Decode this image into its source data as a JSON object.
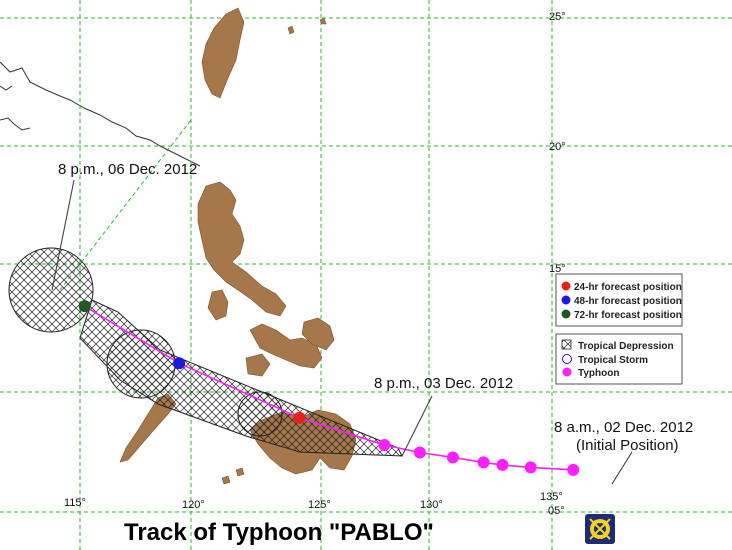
{
  "title": "Track of Typhoon \"PABLO\"",
  "annotations": {
    "initial_time": "8 a.m., 02 Dec. 2012",
    "initial_note": "(Initial Position)",
    "day2_time": "8 p.m., 03 Dec. 2012",
    "day5_time": "8 p.m., 06 Dec. 2012"
  },
  "grid_labels": {
    "lon_115": "115°",
    "lon_120": "120°",
    "lon_125": "125°",
    "lon_130": "130°",
    "lon_135": "135°",
    "lat_05": "05°",
    "lat_15": "15°",
    "lat_20": "20°",
    "lat_25": "25°"
  },
  "legend": {
    "forecast": [
      {
        "label": "24-hr forecast position",
        "color": "#e8201c"
      },
      {
        "label": "48-hr forecast position",
        "color": "#1a1ae0"
      },
      {
        "label": "72-hr forecast position",
        "color": "#1f5a22"
      }
    ],
    "category": [
      {
        "label": "Tropical Depression",
        "symbol": "hatched-square-icon"
      },
      {
        "label": "Tropical Storm",
        "symbol": "hollow-blue-circle-icon"
      },
      {
        "label": "Typhoon",
        "symbol": "magenta-dot-icon"
      }
    ]
  },
  "colors": {
    "land": "#a6774a",
    "grid": "#2fb52f",
    "track": "#ff1fff",
    "typhoon": "#ff1fff"
  },
  "map": {
    "lon_range": [
      112.7,
      140.3
    ],
    "lat_range": [
      3.8,
      26.2
    ]
  },
  "track_points": [
    {
      "type": "typhoon",
      "lon": 135.9,
      "lat": 6.7
    },
    {
      "type": "typhoon",
      "lon": 134.1,
      "lat": 6.8
    },
    {
      "type": "typhoon",
      "lon": 132.9,
      "lat": 6.9
    },
    {
      "type": "typhoon",
      "lon": 132.1,
      "lat": 7.0
    },
    {
      "type": "typhoon",
      "lon": 130.8,
      "lat": 7.2
    },
    {
      "type": "typhoon",
      "lon": 129.4,
      "lat": 7.4
    },
    {
      "type": "typhoon",
      "lon": 127.9,
      "lat": 7.7
    }
  ],
  "forecast_points": [
    {
      "hours": 24,
      "lon": 124.3,
      "lat": 8.8,
      "color": "#e8201c"
    },
    {
      "hours": 48,
      "lon": 119.2,
      "lat": 11.0,
      "color": "#1a1ae0"
    },
    {
      "hours": 72,
      "lon": 115.2,
      "lat": 13.3,
      "color": "#1f5a22"
    }
  ]
}
